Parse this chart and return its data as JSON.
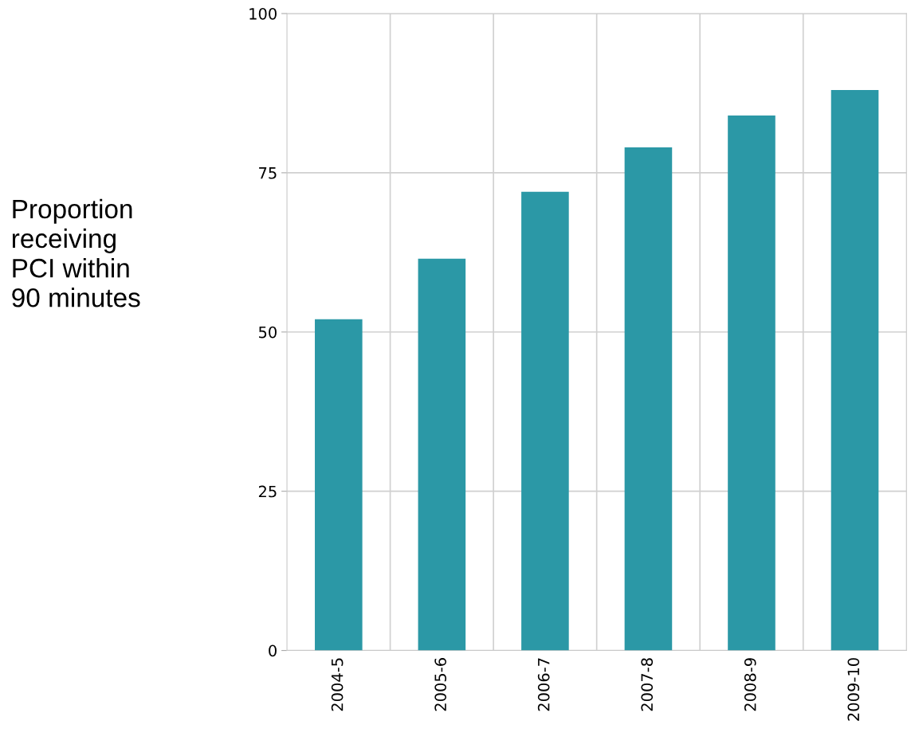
{
  "chart_data": {
    "type": "bar",
    "ylabel": "Proportion\nreceiving\nPCI within\n90 minutes",
    "categories": [
      "2004-5",
      "2005-6",
      "2006-7",
      "2007-8",
      "2008-9",
      "2009-10"
    ],
    "values": [
      52,
      61.5,
      72,
      79,
      84,
      88
    ],
    "color": "#2b98a6",
    "ylim": [
      0,
      100
    ],
    "yticks": [
      0,
      25,
      50,
      75,
      100
    ],
    "grid": true
  }
}
